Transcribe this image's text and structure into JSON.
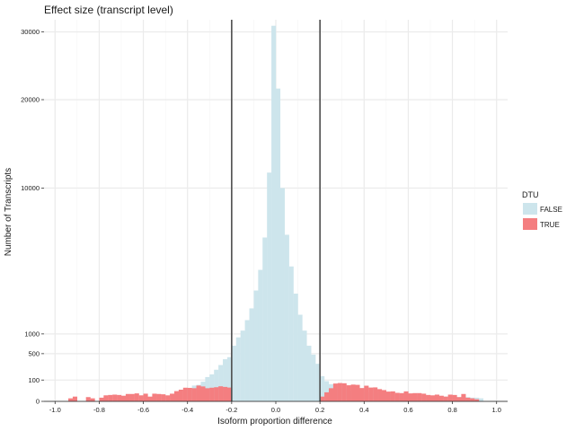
{
  "chart_data": {
    "type": "bar",
    "title": "Effect size (transcript level)",
    "xlabel": "Isoform proportion difference",
    "ylabel": "Number of Transcripts",
    "xlim": [
      -1.05,
      1.05
    ],
    "ylim": [
      0,
      32000
    ],
    "y_scale": "sqrt",
    "grid": true,
    "x_ticks": [
      -1.0,
      -0.8,
      -0.6,
      -0.4,
      -0.2,
      0.0,
      0.2,
      0.4,
      0.6,
      0.8,
      1.0
    ],
    "x_tick_labels": [
      "-1.0",
      "-0.8",
      "-0.6",
      "-0.4",
      "-0.2",
      "0.0",
      "0.2",
      "0.4",
      "0.6",
      "0.8",
      "1.0"
    ],
    "y_ticks": [
      0,
      100,
      500,
      1000,
      10000,
      20000,
      30000
    ],
    "y_tick_labels": [
      "0",
      "100",
      "500",
      "1000",
      "10000",
      "20000",
      "30000"
    ],
    "vlines": [
      -0.2,
      0.2
    ],
    "bin_width": 0.02,
    "legend": {
      "title": "DTU",
      "position": "right",
      "entries": [
        {
          "label": "FALSE",
          "color": "#cde5ec"
        },
        {
          "label": "TRUE",
          "color": "#f47e80"
        }
      ]
    },
    "series": [
      {
        "name": "FALSE",
        "color": "#cde5ec",
        "x": [
          -0.39,
          -0.37,
          -0.35,
          -0.33,
          -0.31,
          -0.29,
          -0.27,
          -0.25,
          -0.23,
          -0.21,
          -0.19,
          -0.17,
          -0.15,
          -0.13,
          -0.11,
          -0.09,
          -0.07,
          -0.05,
          -0.03,
          -0.01,
          0.01,
          0.03,
          0.05,
          0.07,
          0.09,
          0.11,
          0.13,
          0.15,
          0.17,
          0.19,
          0.21,
          0.23,
          0.25,
          0.27,
          0.29,
          0.31,
          0.33,
          0.35,
          0.37,
          0.39,
          0.41,
          0.43,
          0.45,
          0.47,
          0.49,
          0.51,
          0.53,
          0.55,
          0.57,
          0.59,
          0.61,
          0.63,
          0.65,
          0.67,
          0.69,
          0.71,
          0.73,
          0.75,
          0.77,
          0.79,
          0.81,
          0.83,
          0.85,
          0.87,
          0.89,
          0.91,
          0.93
        ],
        "values": [
          40,
          55,
          60,
          85,
          130,
          160,
          220,
          290,
          390,
          430,
          680,
          900,
          1100,
          1450,
          1900,
          2700,
          3800,
          5900,
          11500,
          31000,
          21500,
          10000,
          6100,
          4000,
          2550,
          1650,
          1100,
          680,
          480,
          310,
          140,
          90,
          65,
          55,
          40,
          38,
          32,
          26,
          22,
          20,
          18,
          16,
          15,
          14,
          12,
          12,
          11,
          10,
          10,
          9,
          9,
          8,
          8,
          7,
          7,
          6,
          6,
          6,
          5,
          5,
          5,
          4,
          4,
          4,
          3,
          3,
          2
        ]
      },
      {
        "name": "TRUE",
        "color": "#f47e80",
        "x": [
          -0.93,
          -0.91,
          -0.85,
          -0.83,
          -0.79,
          -0.77,
          -0.75,
          -0.73,
          -0.71,
          -0.69,
          -0.67,
          -0.65,
          -0.63,
          -0.61,
          -0.59,
          -0.57,
          -0.55,
          -0.53,
          -0.51,
          -0.49,
          -0.47,
          -0.45,
          -0.43,
          -0.41,
          -0.39,
          -0.37,
          -0.35,
          -0.33,
          -0.31,
          -0.29,
          -0.27,
          -0.25,
          -0.23,
          -0.21,
          0.21,
          0.23,
          0.25,
          0.27,
          0.29,
          0.31,
          0.33,
          0.35,
          0.37,
          0.39,
          0.41,
          0.43,
          0.45,
          0.47,
          0.49,
          0.51,
          0.53,
          0.55,
          0.57,
          0.59,
          0.61,
          0.63,
          0.65,
          0.67,
          0.69,
          0.71,
          0.73,
          0.75,
          0.77,
          0.79,
          0.81,
          0.83,
          0.85,
          0.87,
          0.89,
          0.91
        ],
        "values": [
          2,
          5,
          4,
          2,
          3,
          8,
          9,
          10,
          9,
          7,
          12,
          12,
          14,
          8,
          13,
          5,
          13,
          12,
          11,
          8,
          13,
          23,
          30,
          41,
          40,
          38,
          55,
          49,
          38,
          41,
          44,
          50,
          46,
          42,
          5,
          18,
          38,
          70,
          74,
          72,
          57,
          62,
          60,
          39,
          54,
          42,
          43,
          33,
          28,
          21,
          22,
          16,
          15,
          22,
          14,
          15,
          15,
          13,
          9,
          8,
          10,
          7,
          5,
          10,
          9,
          4,
          12,
          3,
          2,
          1
        ]
      }
    ]
  }
}
